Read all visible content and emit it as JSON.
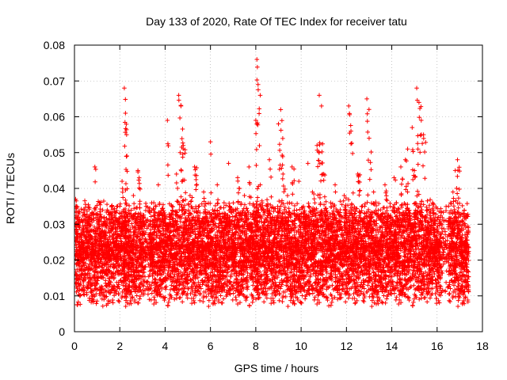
{
  "chart_data": {
    "type": "scatter",
    "title": "Day 133 of 2020, Rate Of TEC Index for receiver tatu",
    "xlabel": "GPS time / hours",
    "ylabel": "ROTI / TECUs",
    "xlim": [
      0,
      18
    ],
    "ylim": [
      0,
      0.08
    ],
    "x_ticks": [
      0,
      2,
      4,
      6,
      8,
      10,
      12,
      14,
      16,
      18
    ],
    "x_tick_labels": [
      "0",
      "2",
      "4",
      "6",
      "8",
      "10",
      "12",
      "14",
      "16",
      "18"
    ],
    "y_ticks": [
      0,
      0.01,
      0.02,
      0.03,
      0.04,
      0.05,
      0.06,
      0.07,
      0.08
    ],
    "y_tick_labels": [
      "0",
      "0.01",
      "0.02",
      "0.03",
      "0.04",
      "0.05",
      "0.06",
      "0.07",
      "0.08"
    ],
    "grid": true,
    "legend": "none",
    "marker": "+",
    "series": [
      {
        "name": "ROTI",
        "color": "#ff0000",
        "x": [
          0.05,
          0.1,
          0.2,
          0.3,
          0.4,
          0.5,
          0.6,
          0.7,
          0.8,
          0.9,
          1.0,
          1.1,
          1.2,
          1.3,
          1.4,
          1.5,
          1.6,
          1.7,
          1.8,
          1.9,
          2.0,
          2.1,
          2.2,
          2.25,
          2.3,
          2.4,
          2.5,
          2.6,
          2.7,
          2.8,
          2.9,
          3.0,
          3.1,
          3.3,
          3.4,
          3.5,
          3.6,
          3.7,
          3.8,
          3.9,
          4.0,
          4.1,
          4.2,
          4.3,
          4.4,
          4.5,
          4.6,
          4.7,
          4.8,
          4.9,
          5.0,
          5.1,
          5.2,
          5.3,
          5.4,
          5.5,
          5.6,
          5.7,
          5.8,
          5.9,
          6.0,
          6.1,
          6.2,
          6.3,
          6.4,
          6.5,
          6.6,
          6.7,
          6.8,
          6.9,
          7.0,
          7.1,
          7.2,
          7.3,
          7.4,
          7.5,
          7.6,
          7.7,
          7.8,
          7.9,
          8.0,
          8.05,
          8.1,
          8.2,
          8.3,
          8.4,
          8.5,
          8.6,
          8.7,
          8.8,
          8.9,
          9.0,
          9.1,
          9.2,
          9.3,
          9.4,
          9.5,
          9.6,
          9.7,
          9.8,
          9.9,
          10.0,
          10.1,
          10.2,
          10.3,
          10.4,
          10.5,
          10.6,
          10.7,
          10.8,
          10.9,
          11.0,
          11.1,
          11.2,
          11.3,
          11.4,
          11.5,
          11.6,
          11.7,
          11.8,
          11.9,
          12.0,
          12.1,
          12.2,
          12.3,
          12.4,
          12.5,
          12.6,
          12.7,
          12.8,
          12.9,
          13.0,
          13.1,
          13.2,
          13.3,
          13.4,
          13.5,
          13.6,
          13.7,
          13.8,
          13.9,
          14.0,
          14.1,
          14.2,
          14.3,
          14.4,
          14.5,
          14.6,
          14.7,
          14.8,
          14.9,
          15.0,
          15.1,
          15.2,
          15.3,
          15.4,
          15.5,
          15.6,
          15.7,
          15.8,
          15.9,
          16.0,
          16.1,
          16.2,
          16.5,
          16.6,
          16.7,
          16.8,
          16.9,
          17.0,
          17.1,
          17.2,
          17.3
        ],
        "y": [
          0.037,
          0.028,
          0.021,
          0.015,
          0.025,
          0.019,
          0.032,
          0.013,
          0.022,
          0.046,
          0.018,
          0.036,
          0.011,
          0.027,
          0.017,
          0.024,
          0.033,
          0.012,
          0.029,
          0.021,
          0.035,
          0.042,
          0.068,
          0.061,
          0.055,
          0.028,
          0.016,
          0.038,
          0.024,
          0.045,
          0.019,
          0.031,
          0.022,
          0.009,
          0.025,
          0.036,
          0.018,
          0.041,
          0.027,
          0.014,
          0.032,
          0.059,
          0.021,
          0.035,
          0.012,
          0.044,
          0.066,
          0.063,
          0.052,
          0.028,
          0.019,
          0.038,
          0.024,
          0.046,
          0.017,
          0.031,
          0.022,
          0.039,
          0.013,
          0.027,
          0.053,
          0.034,
          0.021,
          0.041,
          0.016,
          0.029,
          0.036,
          0.011,
          0.047,
          0.024,
          0.018,
          0.032,
          0.043,
          0.026,
          0.014,
          0.038,
          0.021,
          0.046,
          0.029,
          0.017,
          0.059,
          0.076,
          0.069,
          0.041,
          0.027,
          0.018,
          0.035,
          0.048,
          0.022,
          0.031,
          0.013,
          0.058,
          0.062,
          0.044,
          0.026,
          0.038,
          0.019,
          0.046,
          0.031,
          0.024,
          0.042,
          0.017,
          0.035,
          0.028,
          0.047,
          0.021,
          0.039,
          0.033,
          0.052,
          0.066,
          0.063,
          0.044,
          0.027,
          0.019,
          0.036,
          0.024,
          0.041,
          0.013,
          0.031,
          0.022,
          0.038,
          0.017,
          0.063,
          0.056,
          0.034,
          0.021,
          0.044,
          0.028,
          0.016,
          0.035,
          0.065,
          0.054,
          0.029,
          0.039,
          0.022,
          0.013,
          0.034,
          0.027,
          0.041,
          0.018,
          0.032,
          0.024,
          0.043,
          0.036,
          0.021,
          0.046,
          0.028,
          0.048,
          0.051,
          0.033,
          0.057,
          0.045,
          0.068,
          0.064,
          0.059,
          0.055,
          0.031,
          0.022,
          0.014,
          0.036,
          0.027,
          0.018,
          0.024,
          0.011,
          0.021,
          0.036,
          0.039,
          0.045,
          0.048,
          0.027,
          0.018,
          0.033,
          0.022
        ]
      }
    ]
  }
}
